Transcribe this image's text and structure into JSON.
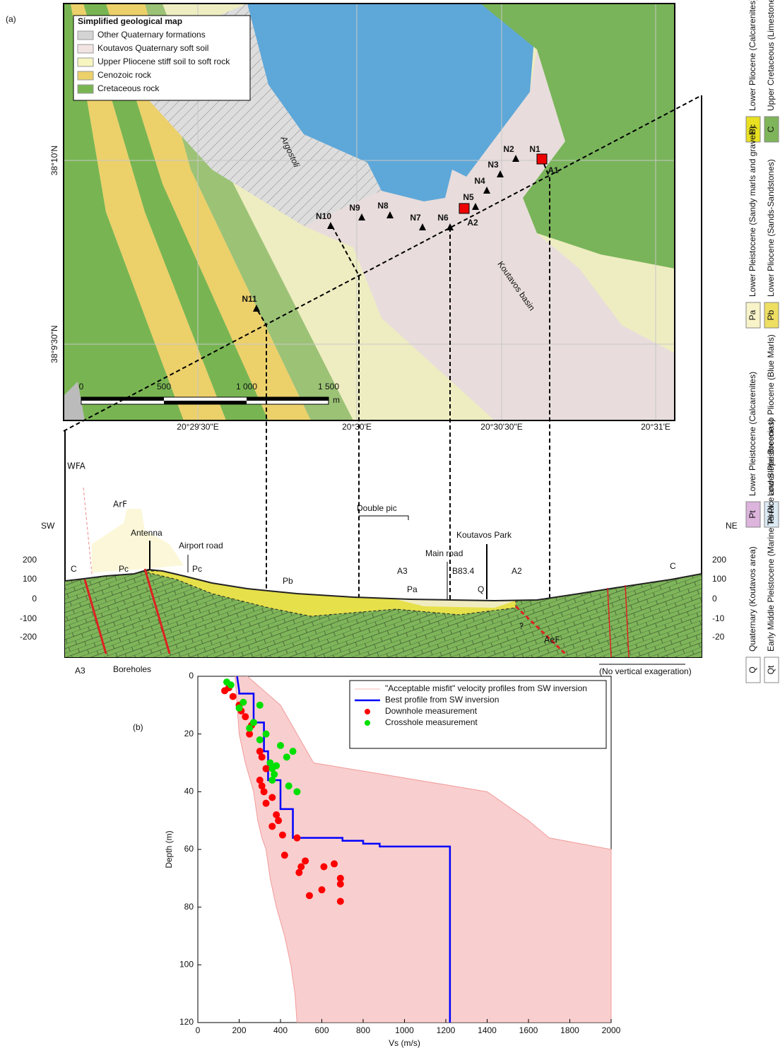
{
  "panel_a": {
    "label": "(a)",
    "legend": {
      "title": "Simplified geological map",
      "items": [
        {
          "name": "Other Quaternary formations",
          "color": "#d4d4d4"
        },
        {
          "name": "Koutavos Quaternary soft soil",
          "color": "#f3e4e4"
        },
        {
          "name": "Upper Pliocene stiff soil to soft rock",
          "color": "#f7f5c0"
        },
        {
          "name": "Cenozoic rock",
          "color": "#ecd06a"
        },
        {
          "name": "Cretaceous rock",
          "color": "#78b552"
        }
      ]
    },
    "stations": [
      "N1",
      "N2",
      "N3",
      "N4",
      "N5",
      "N6",
      "N7",
      "N8",
      "N9",
      "N10",
      "N11"
    ],
    "arrays": [
      "A1",
      "A2"
    ],
    "places": [
      "Argostoli",
      "Koutavos basin"
    ],
    "scale": [
      "0",
      "500",
      "1 000",
      "1 500",
      "m"
    ],
    "lat": [
      "38°10'N",
      "38°9'30\"N"
    ],
    "lon": [
      "20°29'30\"E",
      "20°30'E",
      "20°30'30\"E",
      "20°31'E"
    ],
    "section": {
      "faults": [
        "WFA",
        "ArF",
        "AeF"
      ],
      "ends": [
        "SW",
        "NE"
      ],
      "labels": [
        "Antenna",
        "Airport road",
        "Double pic",
        "Main road",
        "Koutavos Park",
        "Pc",
        "Pc",
        "C",
        "C",
        "Pb",
        "Pa",
        "Q",
        "A3",
        "B83.4",
        "A2",
        "?",
        "Boreholes",
        "A3",
        "(No vertical exageration)"
      ],
      "left_ticks": [
        "200",
        "100",
        "0",
        "-100",
        "-200"
      ],
      "right_ticks": [
        "200",
        "100",
        "0",
        "-10",
        "-20"
      ]
    },
    "key": [
      {
        "symbol": "Pc",
        "text": "Lower Pliocene (Calcarenites)"
      },
      {
        "symbol": "C",
        "text": "Upper Cretaceous (Limestones)"
      },
      {
        "symbol": "Pa",
        "text": "Lower Pleistocene (Sandy marls and gravels)"
      },
      {
        "symbol": "Pb",
        "text": "Lower Pliocene (Sands-Sandstones)"
      },
      {
        "symbol": "Pt",
        "text": "Lower Pleistocene (Calcarenites)"
      },
      {
        "symbol": "Pl-Pl",
        "text": "Lower Pleistocene to Pliocene (Blue Marls)"
      },
      {
        "symbol": "Q",
        "text": "Quaternary (Koutavos area)"
      },
      {
        "symbol": "Qt",
        "text": "Early Middle Pleistocene (Marine Terrace and Slope Breccias)"
      }
    ]
  },
  "chart_data": {
    "type": "scatter",
    "label": "(b)",
    "x_label": "Vs (m/s)",
    "y_label": "Depth (m)",
    "xlim": [
      0,
      2000
    ],
    "xticks": [
      0,
      200,
      400,
      600,
      800,
      1000,
      1200,
      1400,
      1600,
      1800,
      2000
    ],
    "ylim": [
      0,
      120
    ],
    "yticks": [
      0,
      20,
      40,
      60,
      80,
      100,
      120
    ],
    "y_inverted": true,
    "legend": "top-right",
    "series": [
      {
        "name": "\"Acceptable misfit\" velocity profiles from SW inversion",
        "color": "#f7b9b9",
        "kind": "band",
        "y": [
          0,
          10,
          20,
          30,
          40,
          50,
          56,
          60,
          70,
          80,
          90,
          100,
          110,
          120
        ],
        "x_low": [
          180,
          190,
          200,
          230,
          270,
          290,
          310,
          330,
          350,
          380,
          420,
          450,
          470,
          480
        ],
        "x_high": [
          240,
          400,
          480,
          560,
          1400,
          1600,
          1700,
          2000,
          2000,
          2000,
          2000,
          2000,
          2000,
          2000
        ]
      },
      {
        "name": "Best profile from SW inversion",
        "color": "#0000ff",
        "kind": "line",
        "x": [
          190,
          200,
          200,
          270,
          270,
          320,
          320,
          340,
          340,
          400,
          400,
          460,
          460,
          700,
          700,
          800,
          800,
          880,
          880,
          1220,
          1220
        ],
        "y": [
          0,
          5,
          6,
          6,
          16,
          16,
          26,
          26,
          36,
          36,
          46,
          46,
          56,
          56,
          57,
          57,
          58,
          58,
          59,
          59,
          120
        ]
      },
      {
        "name": "Downhole measurement",
        "color": "#ff0000",
        "kind": "points",
        "x": [
          130,
          150,
          170,
          200,
          210,
          230,
          260,
          250,
          300,
          310,
          330,
          300,
          310,
          320,
          330,
          360,
          380,
          390,
          360,
          410,
          420,
          480,
          520,
          500,
          490,
          610,
          660,
          690,
          690,
          540,
          600,
          690
        ],
        "y": [
          5,
          4,
          7,
          10,
          12,
          14,
          17,
          20,
          26,
          28,
          32,
          36,
          38,
          40,
          44,
          42,
          48,
          50,
          52,
          55,
          62,
          56,
          64,
          66,
          68,
          66,
          65,
          70,
          72,
          76,
          74,
          78
        ]
      },
      {
        "name": "Crosshole measurement",
        "color": "#00e000",
        "kind": "points",
        "x": [
          140,
          160,
          200,
          220,
          250,
          270,
          300,
          300,
          330,
          350,
          360,
          370,
          380,
          360,
          400,
          430,
          460,
          440,
          480
        ],
        "y": [
          2,
          3,
          11,
          9,
          18,
          16,
          22,
          10,
          20,
          30,
          32,
          34,
          31,
          36,
          24,
          28,
          26,
          38,
          40
        ]
      }
    ]
  }
}
